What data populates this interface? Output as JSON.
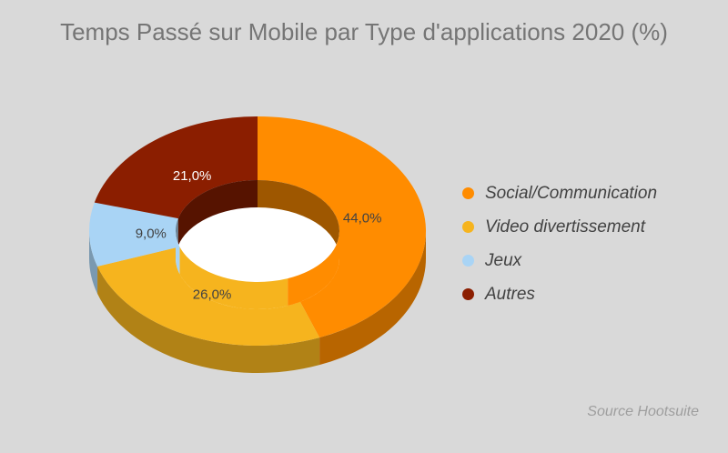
{
  "chart_data": {
    "type": "pie",
    "variant": "3d-donut",
    "title": "Temps Passé sur Mobile par Type d'applications 2020 (%)",
    "categories": [
      "Social/Communication",
      "Video divertissement",
      "Jeux",
      "Autres"
    ],
    "values": [
      44.0,
      26.0,
      9.0,
      21.0
    ],
    "data_labels": [
      "44,0%",
      "26,0%",
      "9,0%",
      "21,0%"
    ],
    "colors": [
      "#ff8c00",
      "#f6b41e",
      "#a9d4f5",
      "#8b1e00"
    ],
    "legend_position": "right",
    "source": "Source Hootsuite"
  }
}
